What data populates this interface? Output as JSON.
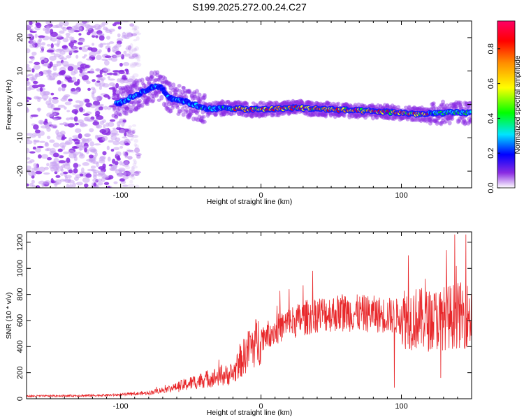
{
  "figure_title": "S199.2025.272.00.24.C27",
  "chart_data": [
    {
      "type": "heatmap",
      "xlabel": "Height of straight line (km)",
      "ylabel": "Frequency (Hz)",
      "xlim": [
        -167,
        150
      ],
      "ylim": [
        -25,
        25
      ],
      "xticks": [
        -100,
        0,
        100
      ],
      "yticks": [
        -20,
        -10,
        0,
        10,
        20
      ],
      "colorbar": {
        "label": "Normalized spectral amplitude",
        "range": [
          0,
          0.96
        ],
        "ticks": [
          "0.0",
          "0.2",
          "0.4",
          "0.6",
          "0.8"
        ],
        "colors": [
          "#ffffff",
          "#8a2be2",
          "#0000ff",
          "#00e5ff",
          "#00ff00",
          "#ffff00",
          "#ff8c00",
          "#ff0000",
          "#ff0066"
        ]
      },
      "ridge": [
        {
          "x": -100,
          "y": 0.5
        },
        {
          "x": -88,
          "y": 3
        },
        {
          "x": -78,
          "y": 5
        },
        {
          "x": -72,
          "y": 5.5
        },
        {
          "x": -65,
          "y": 2
        },
        {
          "x": -55,
          "y": 1
        },
        {
          "x": -45,
          "y": -0.5
        },
        {
          "x": -35,
          "y": -1.5
        },
        {
          "x": -25,
          "y": -1
        },
        {
          "x": -10,
          "y": -1.5
        },
        {
          "x": 0,
          "y": -1.5
        },
        {
          "x": 25,
          "y": -1
        },
        {
          "x": 50,
          "y": -1.5
        },
        {
          "x": 75,
          "y": -2
        },
        {
          "x": 100,
          "y": -2.5
        },
        {
          "x": 115,
          "y": -3
        },
        {
          "x": 130,
          "y": -2.5
        },
        {
          "x": 150,
          "y": -2.5
        }
      ]
    },
    {
      "type": "line",
      "xlabel": "Height of straight line (km)",
      "ylabel": "SNR (10 * v/v)",
      "xlim": [
        -167,
        150
      ],
      "ylim": [
        0,
        1280
      ],
      "xticks": [
        -100,
        0,
        100
      ],
      "yticks": [
        0,
        200,
        400,
        600,
        800,
        1000,
        1200
      ],
      "color": "#e8282b",
      "trend": [
        {
          "x": -167,
          "y": 20
        },
        {
          "x": -120,
          "y": 25
        },
        {
          "x": -100,
          "y": 30
        },
        {
          "x": -80,
          "y": 45
        },
        {
          "x": -60,
          "y": 90
        },
        {
          "x": -40,
          "y": 150
        },
        {
          "x": -20,
          "y": 190
        },
        {
          "x": -10,
          "y": 360
        },
        {
          "x": 0,
          "y": 470
        },
        {
          "x": 20,
          "y": 580
        },
        {
          "x": 40,
          "y": 650
        },
        {
          "x": 60,
          "y": 660
        },
        {
          "x": 80,
          "y": 650
        },
        {
          "x": 100,
          "y": 630
        },
        {
          "x": 120,
          "y": 600
        },
        {
          "x": 140,
          "y": 640
        },
        {
          "x": 150,
          "y": 640
        }
      ],
      "spikes": [
        {
          "x": -30,
          "y": 300
        },
        {
          "x": -15,
          "y": 420
        },
        {
          "x": -8,
          "y": 520
        },
        {
          "x": 20,
          "y": 840
        },
        {
          "x": 30,
          "y": 870
        },
        {
          "x": 95,
          "y": 85
        },
        {
          "x": 105,
          "y": 1100
        },
        {
          "x": 117,
          "y": 920
        },
        {
          "x": 128,
          "y": 160
        },
        {
          "x": 132,
          "y": 1140
        },
        {
          "x": 138,
          "y": 1260
        },
        {
          "x": 146,
          "y": 1260
        }
      ]
    }
  ]
}
